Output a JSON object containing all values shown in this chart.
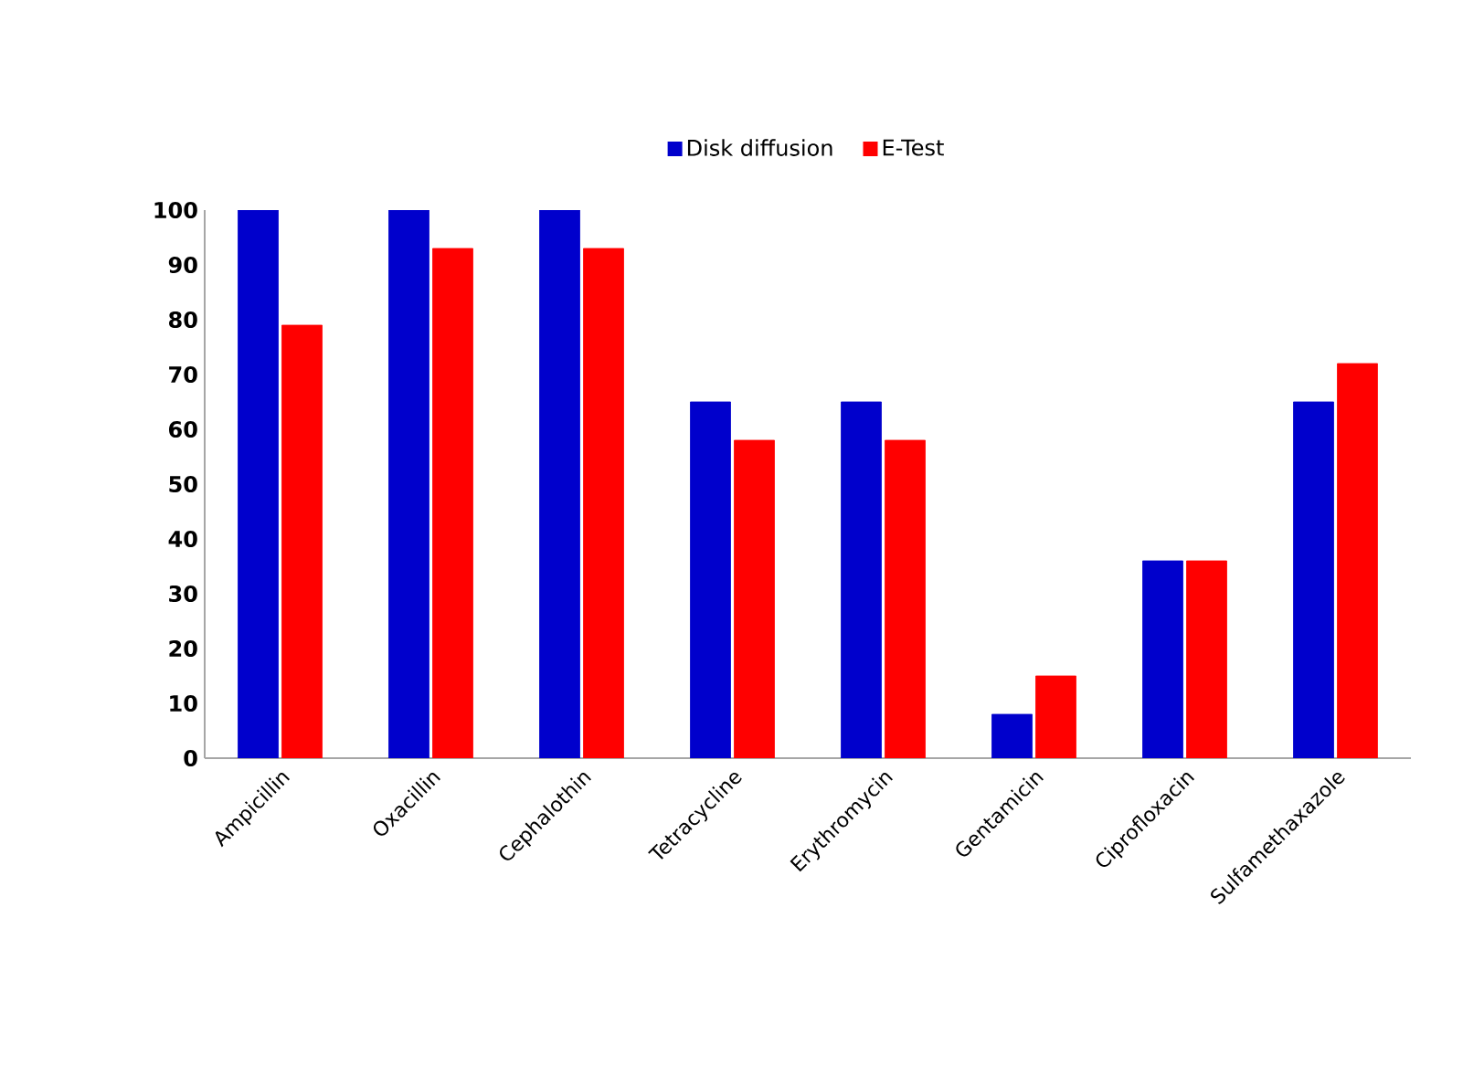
{
  "chart_data": {
    "type": "bar",
    "categories": [
      "Ampicillin",
      "Oxacillin",
      "Cephalothin",
      "Tetracycline",
      "Erythromycin",
      "Gentamicin",
      "Ciprofloxacin",
      "Sulfamethaxazole"
    ],
    "series": [
      {
        "name": "Disk diffusion",
        "color": "#0000cc",
        "values": [
          100,
          100,
          100,
          65,
          65,
          8,
          36,
          65
        ]
      },
      {
        "name": "E-Test",
        "color": "#ff0000",
        "values": [
          79,
          93,
          93,
          58,
          58,
          15,
          36,
          72
        ]
      }
    ],
    "ylim": [
      0,
      100
    ],
    "yticks": [
      0,
      10,
      20,
      30,
      40,
      50,
      60,
      70,
      80,
      90,
      100
    ],
    "grid": false,
    "legend": "top"
  }
}
